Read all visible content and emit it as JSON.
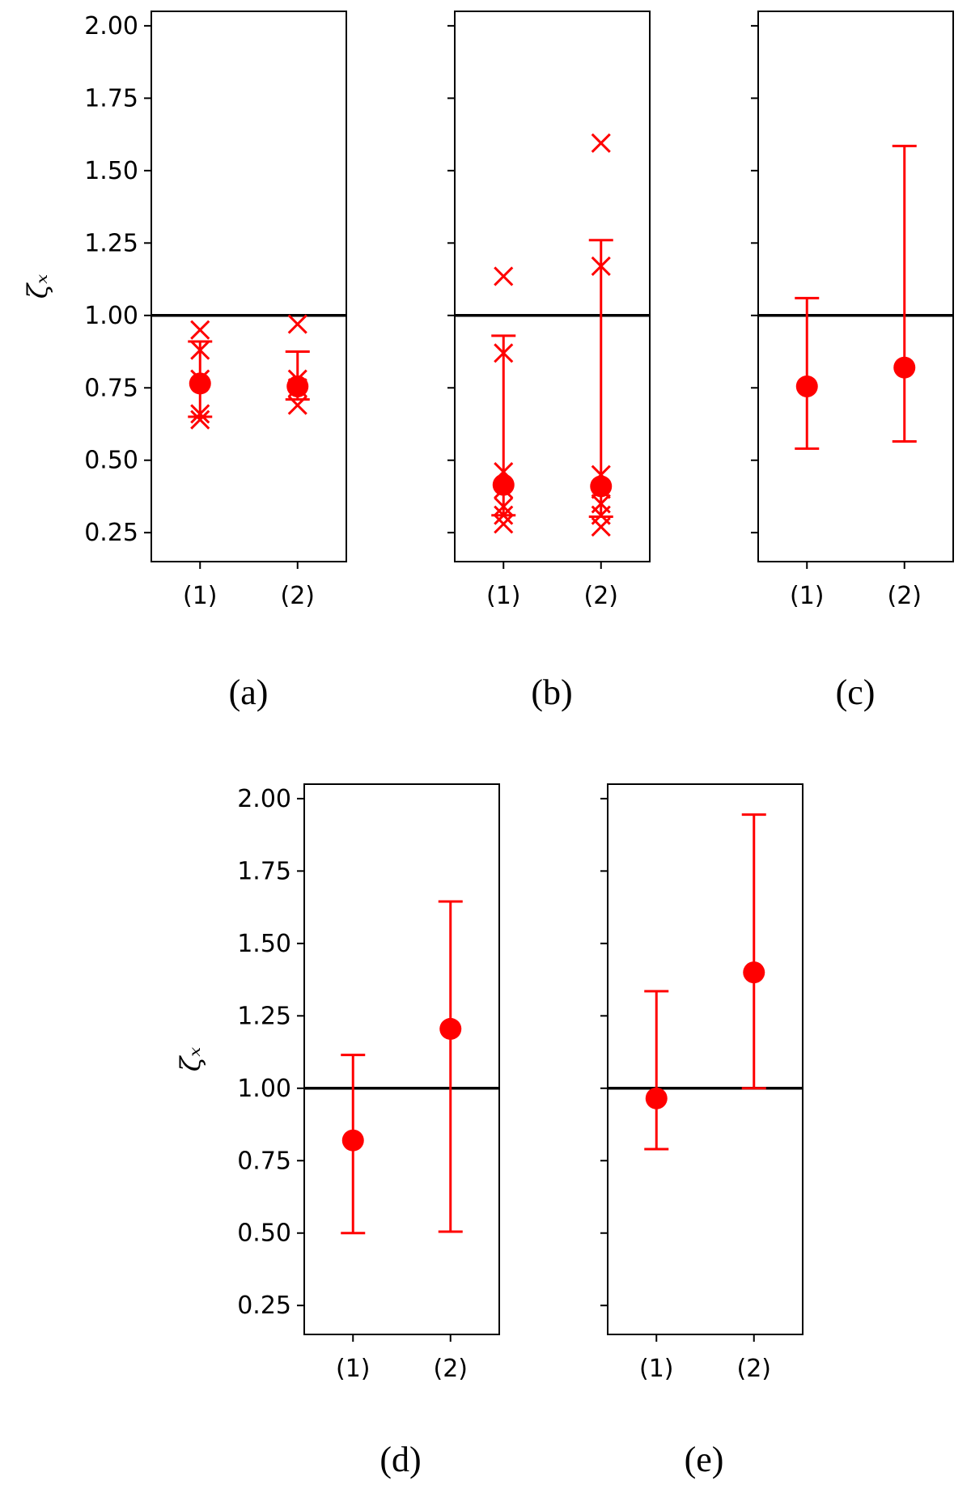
{
  "colors": {
    "series": "#ff0000",
    "reference_line": "#000000",
    "axes": "#000000"
  },
  "chart_data": [
    {
      "type": "scatter",
      "caption": "(a)",
      "ylabel": "ζₓ",
      "categories": [
        "(1)",
        "(2)"
      ],
      "ylim": [
        0.15,
        2.05
      ],
      "yticks": [
        "0.25",
        "0.50",
        "0.75",
        "1.00",
        "1.25",
        "1.50",
        "1.75",
        "2.00"
      ],
      "reference_line": 1.0,
      "mean": [
        0.765,
        0.755
      ],
      "error_low": [
        0.65,
        0.71
      ],
      "error_high": [
        0.91,
        0.875
      ],
      "samples": [
        [
          0.95,
          0.88,
          0.78,
          0.66,
          0.64
        ],
        [
          0.97,
          0.78,
          0.75,
          0.69
        ]
      ]
    },
    {
      "type": "scatter",
      "caption": "(b)",
      "ylabel": "",
      "categories": [
        "(1)",
        "(2)"
      ],
      "ylim": [
        0.15,
        2.05
      ],
      "yticks": [],
      "reference_line": 1.0,
      "mean": [
        0.415,
        0.41
      ],
      "error_low": [
        0.31,
        0.305
      ],
      "error_high": [
        0.93,
        1.26
      ],
      "samples": [
        [
          1.135,
          0.87,
          0.46,
          0.4,
          0.34,
          0.31,
          0.28
        ],
        [
          1.595,
          1.17,
          0.45,
          0.4,
          0.35,
          0.31,
          0.27
        ]
      ]
    },
    {
      "type": "scatter",
      "caption": "(c)",
      "ylabel": "",
      "categories": [
        "(1)",
        "(2)"
      ],
      "ylim": [
        0.15,
        2.05
      ],
      "yticks": [],
      "reference_line": 1.0,
      "mean": [
        0.755,
        0.82
      ],
      "error_low": [
        0.54,
        0.565
      ],
      "error_high": [
        1.06,
        1.585
      ],
      "samples": [
        [],
        []
      ]
    },
    {
      "type": "scatter",
      "caption": "(d)",
      "ylabel": "ζₓ",
      "categories": [
        "(1)",
        "(2)"
      ],
      "ylim": [
        0.15,
        2.05
      ],
      "yticks": [
        "0.25",
        "0.50",
        "0.75",
        "1.00",
        "1.25",
        "1.50",
        "1.75",
        "2.00"
      ],
      "reference_line": 1.0,
      "mean": [
        0.82,
        1.205
      ],
      "error_low": [
        0.5,
        0.505
      ],
      "error_high": [
        1.115,
        1.645
      ],
      "samples": [
        [],
        []
      ]
    },
    {
      "type": "scatter",
      "caption": "(e)",
      "ylabel": "",
      "categories": [
        "(1)",
        "(2)"
      ],
      "ylim": [
        0.15,
        2.05
      ],
      "yticks": [],
      "reference_line": 1.0,
      "mean": [
        0.965,
        1.4
      ],
      "error_low": [
        0.79,
        1.0
      ],
      "error_high": [
        1.335,
        1.945
      ],
      "samples": [
        [],
        []
      ]
    }
  ]
}
